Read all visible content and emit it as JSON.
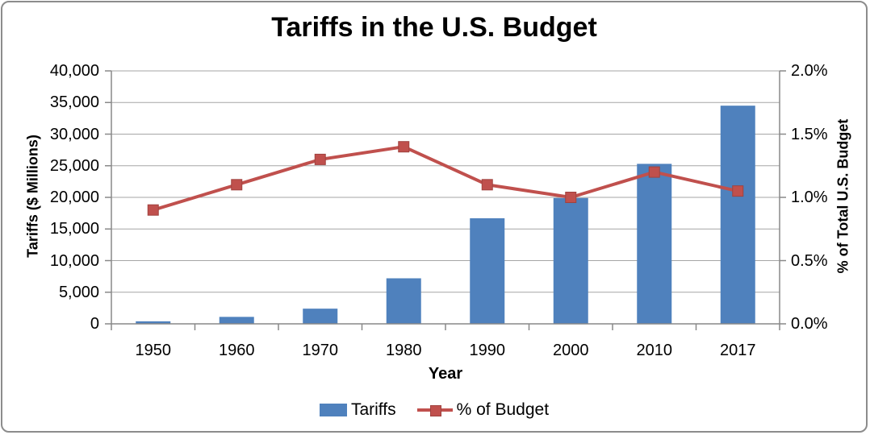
{
  "chart_data": {
    "type": "combo-bar-line",
    "title": "Tariffs in the U.S. Budget",
    "xlabel": "Year",
    "categories": [
      "1950",
      "1960",
      "1970",
      "1980",
      "1990",
      "2000",
      "2010",
      "2017"
    ],
    "series": [
      {
        "name": "Tariffs",
        "type": "bar",
        "axis": "left",
        "values": [
          400,
          1100,
          2400,
          7200,
          16700,
          19900,
          25300,
          34500
        ],
        "color": "#4F81BD"
      },
      {
        "name": "% of Budget",
        "type": "line",
        "axis": "right",
        "values": [
          0.9,
          1.1,
          1.3,
          1.4,
          1.1,
          1.0,
          1.2,
          1.05
        ],
        "color": "#C0504D",
        "marker": "square"
      }
    ],
    "left_axis": {
      "title": "Tariffs ($ Millions)",
      "min": 0,
      "max": 40000,
      "step": 5000,
      "tick_labels": [
        "0",
        "5,000",
        "10,000",
        "15,000",
        "20,000",
        "25,000",
        "30,000",
        "35,000",
        "40,000"
      ]
    },
    "right_axis": {
      "title": "% of Total  U.S. Budget",
      "min": 0,
      "max": 2,
      "step": 0.5,
      "tick_labels": [
        "0.0%",
        "0.5%",
        "1.0%",
        "1.5%",
        "2.0%"
      ]
    },
    "grid": true,
    "legend_position": "bottom",
    "palette": {
      "bar_blue": "#4F81BD",
      "line_red": "#C0504D",
      "marker_edge": "#A0423F",
      "gridline_gray": "#A6A6A6",
      "axis_gray": "#898989",
      "frame_gray": "#8C8C8C",
      "text_black": "#000000"
    }
  }
}
